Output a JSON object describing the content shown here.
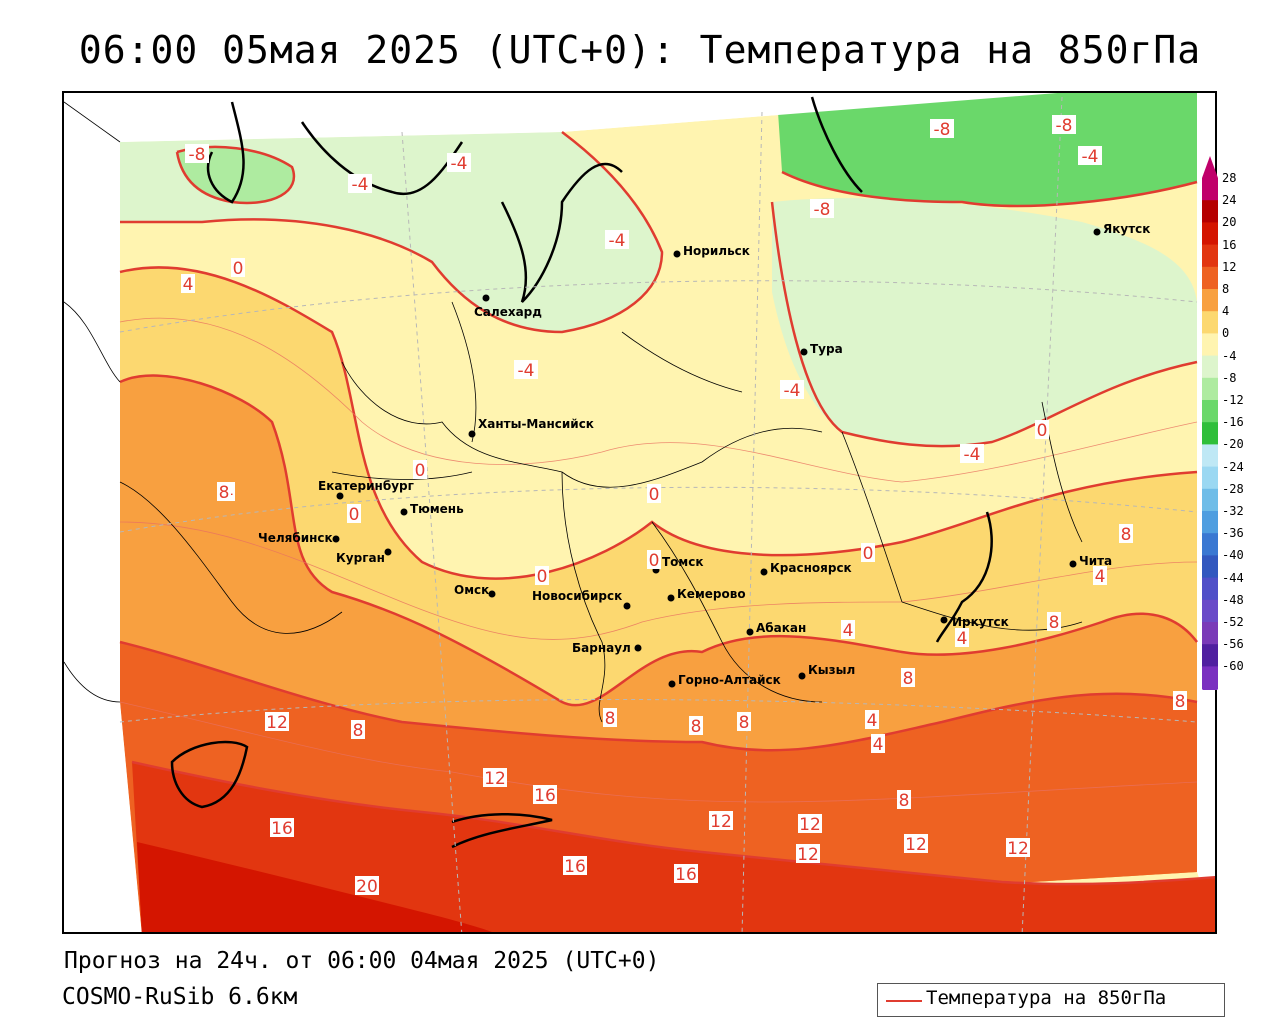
{
  "title": "06:00 05мая 2025 (UTC+0): Температура на 850гПа",
  "footer": {
    "forecast": "Прогноз на 24ч. от 06:00 04мая 2025 (UTC+0)",
    "model": "COSMO-RuSib 6.6км"
  },
  "legend": {
    "label": "Температура на 850гПа",
    "line_color": "#e03c30"
  },
  "colorscale": {
    "labels": [
      "28",
      "24",
      "20",
      "16",
      "12",
      "8",
      "4",
      "0",
      "-4",
      "-8",
      "-12",
      "-16",
      "-20",
      "-24",
      "-28",
      "-32",
      "-36",
      "-40",
      "-44",
      "-48",
      "-52",
      "-56",
      "-60"
    ],
    "colors": [
      "#c0006a",
      "#b50000",
      "#d41500",
      "#e23610",
      "#ee6222",
      "#f8a040",
      "#fcd870",
      "#fff4b0",
      "#ddf5cc",
      "#aeeba0",
      "#6ad86a",
      "#2fbf3a",
      "#bfe8f5",
      "#9bd8f2",
      "#6fbde8",
      "#4f9ee0",
      "#3a78d2",
      "#3258bf",
      "#5050c8",
      "#6a4ac8",
      "#7a3ab8",
      "#5020a0",
      "#7a30c0"
    ]
  },
  "cities": [
    {
      "name": "Салехард"
    },
    {
      "name": "Норильск"
    },
    {
      "name": "Якутск"
    },
    {
      "name": "Тура"
    },
    {
      "name": "Ханты-Мансийск"
    },
    {
      "name": "Екатеринбург"
    },
    {
      "name": "Тюмень"
    },
    {
      "name": "Челябинск"
    },
    {
      "name": "Курган"
    },
    {
      "name": "Омск"
    },
    {
      "name": "Новосибирск"
    },
    {
      "name": "Томск"
    },
    {
      "name": "Кемерово"
    },
    {
      "name": "Красноярск"
    },
    {
      "name": "Абакан"
    },
    {
      "name": "Барнаул"
    },
    {
      "name": "Горно-Алтайск"
    },
    {
      "name": "Кызыл"
    },
    {
      "name": "Иркутск"
    },
    {
      "name": "Чита"
    }
  ],
  "contour_labels": [
    "-8",
    "-4",
    "-4",
    "-8",
    "-8",
    "-4",
    "-8",
    "-4",
    "0",
    "4",
    "-4",
    "-4",
    "-4",
    "0",
    "0",
    "0",
    "4",
    "0",
    "0",
    "0",
    "8",
    "4",
    "0",
    "4",
    "8",
    "4",
    "8",
    "12",
    "8",
    "12",
    "16",
    "16",
    "20",
    "16",
    "16",
    "12",
    "12",
    "12",
    "12",
    "12",
    "8",
    "8",
    "8",
    "4",
    "4",
    "8",
    "8",
    "8"
  ]
}
